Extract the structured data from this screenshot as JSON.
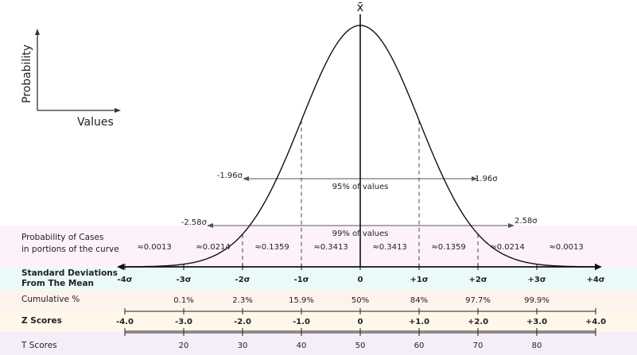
{
  "colors": {
    "band_probability": "#fdf2fb",
    "band_sd": "#eafaf8",
    "band_cumulative": "#fdf3ec",
    "band_z": "#fff8ea",
    "band_t": "#f4eefb",
    "curve": "#111111",
    "dashed": "#444444",
    "interval_arrow": "#555555"
  },
  "inset": {
    "ylabel": "Probability",
    "xlabel": "Values"
  },
  "mean_symbol": "x̄",
  "intervals": {
    "p95": {
      "left": "-1.96σ",
      "right": "1.96σ",
      "label": "95% of values"
    },
    "p99": {
      "left": "-2.58σ",
      "right": "2.58σ",
      "label": "99% of values"
    }
  },
  "rows": {
    "probability": {
      "label1": "Probability of Cases",
      "label2": "in portions of the curve",
      "values": [
        "≈0.0013",
        "≈0.0214",
        "≈0.1359",
        "≈0.3413",
        "≈0.3413",
        "≈0.1359",
        "≈0.0214",
        "≈0.0013"
      ]
    },
    "sd": {
      "label1": "Standard Deviations",
      "label2": "From The Mean",
      "ticks": [
        "-4σ",
        "-3σ",
        "-2σ",
        "-1σ",
        "0",
        "+1σ",
        "+2σ",
        "+3σ",
        "+4σ"
      ]
    },
    "cumulative": {
      "label": "Cumulative %",
      "ticks": [
        "",
        "0.1%",
        "2.3%",
        "15.9%",
        "50%",
        "84%",
        "97.7%",
        "99.9%",
        ""
      ]
    },
    "z": {
      "label": "Z Scores",
      "ticks": [
        "-4.0",
        "-3.0",
        "-2.0",
        "-1.0",
        "0",
        "+1.0",
        "+2.0",
        "+3.0",
        "+4.0"
      ]
    },
    "t": {
      "label": "T Scores",
      "ticks": [
        "",
        "20",
        "30",
        "40",
        "50",
        "60",
        "70",
        "80",
        ""
      ]
    }
  }
}
